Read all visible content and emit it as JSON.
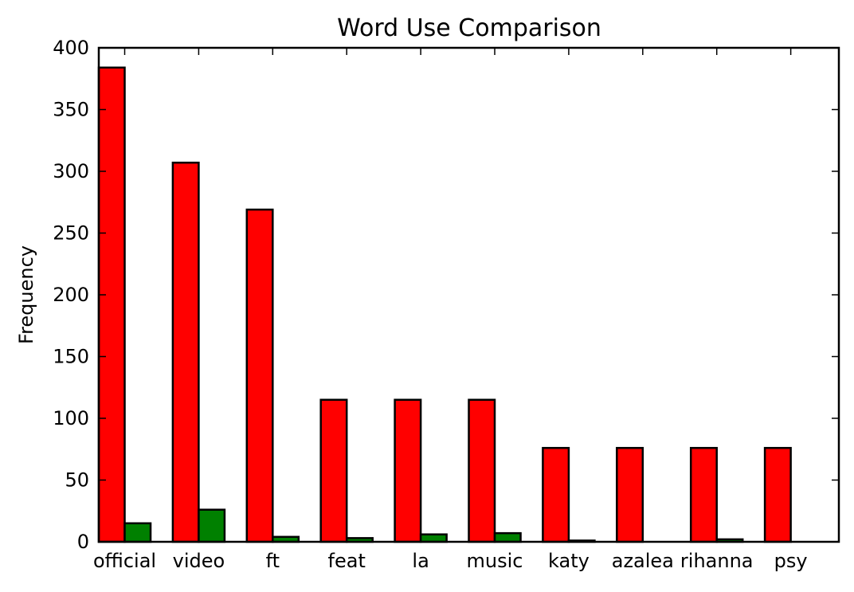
{
  "chart_data": {
    "type": "bar",
    "title": "Word Use Comparison",
    "xlabel": "",
    "ylabel": "Frequency",
    "ylim": [
      0,
      400
    ],
    "yticks": [
      0,
      50,
      100,
      150,
      200,
      250,
      300,
      350,
      400
    ],
    "categories": [
      "official",
      "video",
      "ft",
      "feat",
      "la",
      "music",
      "katy",
      "azalea",
      "rihanna",
      "psy"
    ],
    "series": [
      {
        "values": [
          384,
          307,
          269,
          115,
          115,
          115,
          76,
          76,
          76,
          76
        ],
        "color": "#ff0000"
      },
      {
        "values": [
          15,
          26,
          4,
          3,
          6,
          7,
          1,
          0,
          2,
          0
        ],
        "color": "#008000"
      }
    ],
    "grid": false,
    "legend": "none"
  }
}
